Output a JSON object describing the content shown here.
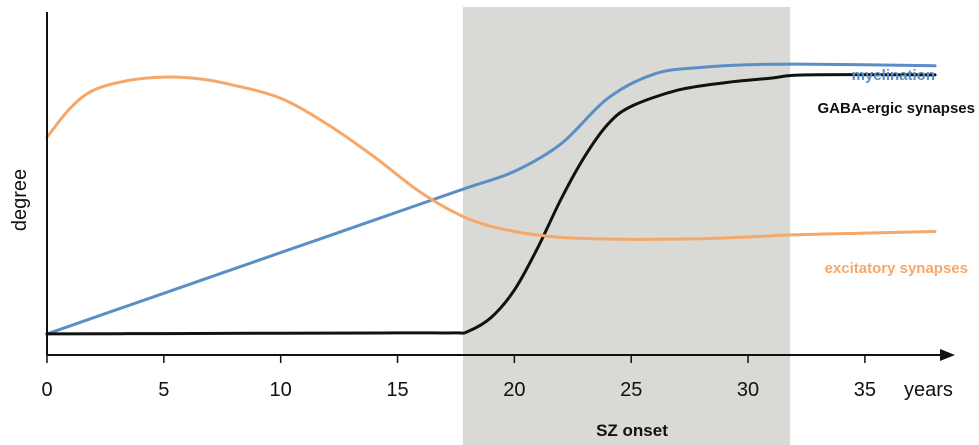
{
  "chart_data": {
    "type": "line",
    "title": "",
    "xlabel": "years",
    "ylabel": "degree",
    "xlim": [
      0,
      38
    ],
    "ylim": [
      0,
      1
    ],
    "x_ticks": [
      0,
      5,
      10,
      15,
      20,
      25,
      30,
      35
    ],
    "grid": false,
    "shaded_region": {
      "x_start": 17.8,
      "x_end": 31.8,
      "label": "SZ onset",
      "color": "#d9d9d6"
    },
    "series": [
      {
        "name": "myelination",
        "color": "#5b8ec6",
        "points": [
          [
            0,
            0.065
          ],
          [
            5,
            0.19
          ],
          [
            10,
            0.315
          ],
          [
            15,
            0.44
          ],
          [
            18,
            0.515
          ],
          [
            20,
            0.565
          ],
          [
            22,
            0.65
          ],
          [
            24,
            0.79
          ],
          [
            26,
            0.865
          ],
          [
            28,
            0.885
          ],
          [
            30,
            0.893
          ],
          [
            32,
            0.895
          ],
          [
            35,
            0.893
          ],
          [
            38,
            0.89
          ]
        ]
      },
      {
        "name": "GABA-ergic synapses",
        "color": "#111111",
        "points": [
          [
            0,
            0.065
          ],
          [
            5,
            0.066
          ],
          [
            10,
            0.067
          ],
          [
            15,
            0.068
          ],
          [
            17.5,
            0.068
          ],
          [
            18,
            0.072
          ],
          [
            19,
            0.115
          ],
          [
            20,
            0.2
          ],
          [
            21,
            0.33
          ],
          [
            22,
            0.48
          ],
          [
            23,
            0.61
          ],
          [
            24,
            0.71
          ],
          [
            25,
            0.765
          ],
          [
            27,
            0.815
          ],
          [
            29,
            0.838
          ],
          [
            31,
            0.852
          ],
          [
            32.5,
            0.862
          ],
          [
            38,
            0.862
          ]
        ]
      },
      {
        "name": "excitatory synapses",
        "color": "#f6a76a",
        "points": [
          [
            0,
            0.67
          ],
          [
            1,
            0.76
          ],
          [
            2,
            0.815
          ],
          [
            3.5,
            0.845
          ],
          [
            5,
            0.855
          ],
          [
            6.5,
            0.85
          ],
          [
            8,
            0.83
          ],
          [
            10,
            0.79
          ],
          [
            12,
            0.71
          ],
          [
            14,
            0.61
          ],
          [
            16,
            0.5
          ],
          [
            18,
            0.42
          ],
          [
            20,
            0.38
          ],
          [
            22,
            0.362
          ],
          [
            24,
            0.357
          ],
          [
            26,
            0.356
          ],
          [
            28,
            0.358
          ],
          [
            30,
            0.363
          ],
          [
            32,
            0.37
          ],
          [
            35,
            0.375
          ],
          [
            38,
            0.38
          ]
        ]
      }
    ]
  }
}
